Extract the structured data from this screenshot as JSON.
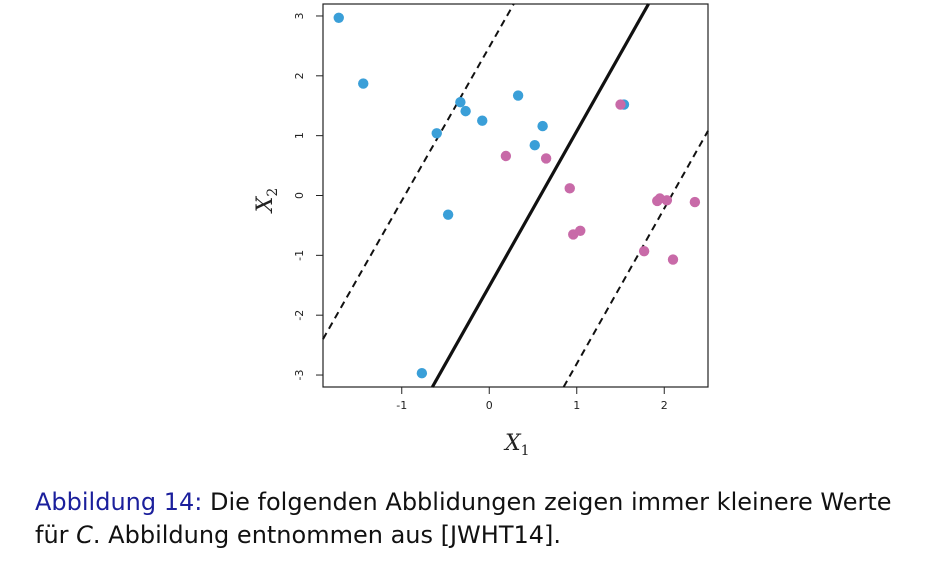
{
  "chart_data": {
    "type": "scatter",
    "xlabel": "X",
    "xlabel_sub": "1",
    "ylabel": "X",
    "ylabel_sub": "2",
    "xlim": [
      -1.9,
      2.5
    ],
    "ylim": [
      -3.2,
      3.2
    ],
    "x_ticks": [
      -1,
      0,
      1,
      2
    ],
    "y_ticks": [
      -3,
      -2,
      -1,
      0,
      1,
      2,
      3
    ],
    "grid": false,
    "legend": "none",
    "series": [
      {
        "color": "#3a9fd8",
        "points": [
          [
            -1.72,
            2.97
          ],
          [
            -1.44,
            1.87
          ],
          [
            -0.33,
            1.56
          ],
          [
            -0.27,
            1.41
          ],
          [
            -0.6,
            1.04
          ],
          [
            -0.08,
            1.25
          ],
          [
            0.33,
            1.67
          ],
          [
            0.61,
            1.16
          ],
          [
            0.52,
            0.84
          ],
          [
            1.54,
            1.52
          ],
          [
            -0.47,
            -0.32
          ],
          [
            -0.77,
            -2.97
          ]
        ]
      },
      {
        "color": "#c86aa8",
        "points": [
          [
            1.5,
            1.52
          ],
          [
            0.19,
            0.66
          ],
          [
            0.65,
            0.62
          ],
          [
            0.92,
            0.12
          ],
          [
            0.96,
            -0.65
          ],
          [
            1.04,
            -0.59
          ],
          [
            1.77,
            -0.93
          ],
          [
            1.95,
            -0.05
          ],
          [
            1.92,
            -0.09
          ],
          [
            2.03,
            -0.08
          ],
          [
            2.1,
            -1.07
          ],
          [
            2.35,
            -0.11
          ]
        ]
      }
    ],
    "lines": [
      {
        "style": "solid",
        "from": [
          -0.65,
          -3.2
        ],
        "to": [
          1.82,
          3.2
        ]
      },
      {
        "style": "dashed",
        "from": [
          -1.9,
          -2.4
        ],
        "to": [
          0.28,
          3.2
        ]
      },
      {
        "style": "dashed",
        "from": [
          0.85,
          -3.2
        ],
        "to": [
          2.5,
          1.08
        ]
      }
    ]
  },
  "caption": {
    "label": "Abbildung 14:",
    "text_line1": " Die folgenden Abblidungen zeigen immer kleinere Werte",
    "text_pre_c": "für ",
    "c_symbol": "C",
    "text_line2": ". Abbildung entnommen aus [JWHT14]."
  }
}
